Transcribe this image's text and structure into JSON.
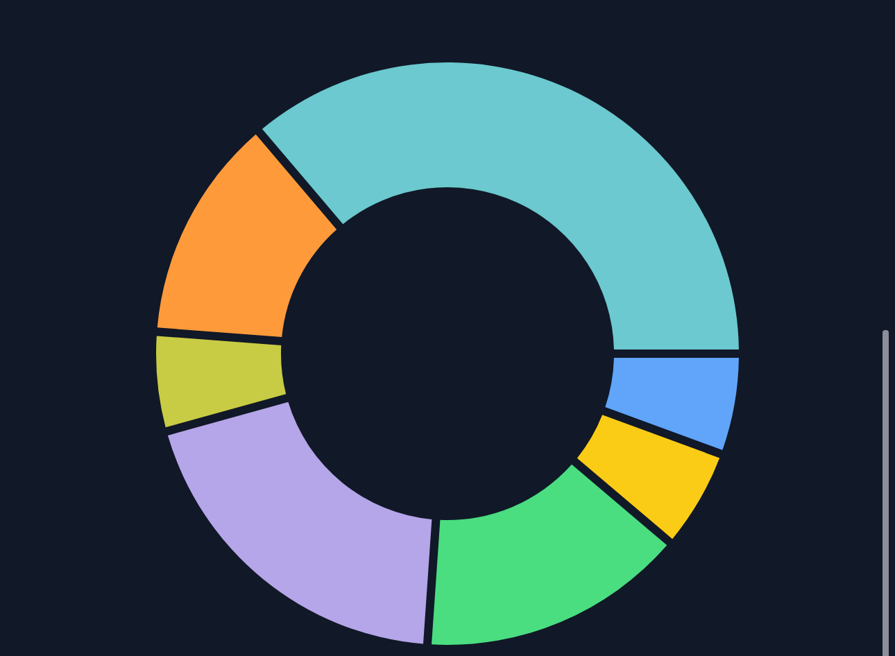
{
  "chart_data": {
    "type": "donut",
    "categories": [
      null,
      null,
      null,
      null,
      null,
      null,
      null
    ],
    "values": [
      5.6,
      5.6,
      14.9,
      19.6,
      5.5,
      12.6,
      36.2
    ],
    "colors": [
      "#60a5fa",
      "#facc15",
      "#4ade80",
      "#b5a5e9",
      "#c8cc44",
      "#ff9a3b",
      "#6bc9cf"
    ]
  }
}
